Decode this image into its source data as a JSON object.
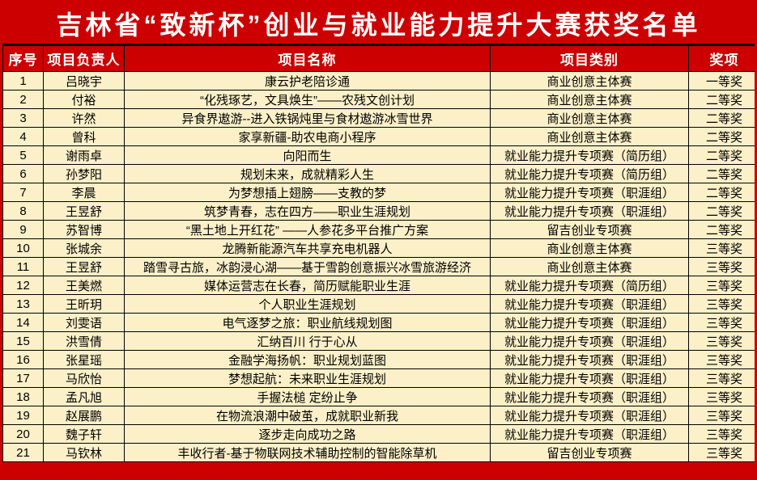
{
  "title": "吉林省“致新杯”创业与就业能力提升大赛获奖名单",
  "colors": {
    "banner_red": "#CC0000",
    "row_cream": "#FBF0C8",
    "grid_line": "#000000",
    "banner_text": "#FFFFFF",
    "body_text": "#000000"
  },
  "table": {
    "columns": [
      "序号",
      "项目负责人",
      "项目名称",
      "项目类别",
      "奖项"
    ],
    "rows": [
      {
        "no": "1",
        "leader": "吕晓宇",
        "project": "康云护老陪诊通",
        "category": "商业创意主体赛",
        "award": "一等奖"
      },
      {
        "no": "2",
        "leader": "付裕",
        "project": "“化残琢艺，文具焕生”——农残文创计划",
        "category": "商业创意主体赛",
        "award": "二等奖"
      },
      {
        "no": "3",
        "leader": "许然",
        "project": "异食界遨游--进入铁锅炖里与食材遨游冰雪世界",
        "category": "商业创意主体赛",
        "award": "二等奖"
      },
      {
        "no": "4",
        "leader": "曾科",
        "project": "家享新疆-助农电商小程序",
        "category": "商业创意主体赛",
        "award": "二等奖"
      },
      {
        "no": "5",
        "leader": "谢雨卓",
        "project": "向阳而生",
        "category": "就业能力提升专项赛（简历组）",
        "award": "二等奖"
      },
      {
        "no": "6",
        "leader": "孙梦阳",
        "project": "规划未来，成就精彩人生",
        "category": "就业能力提升专项赛（简历组）",
        "award": "二等奖"
      },
      {
        "no": "7",
        "leader": "李晨",
        "project": "为梦想插上翅膀——支教的梦",
        "category": "就业能力提升专项赛（职涯组）",
        "award": "二等奖"
      },
      {
        "no": "8",
        "leader": "王昱舒",
        "project": "筑梦青春，志在四方——职业生涯规划",
        "category": "就业能力提升专项赛（职涯组）",
        "award": "二等奖"
      },
      {
        "no": "9",
        "leader": "苏智博",
        "project": "“黑土地上开红花” ——人参花多平台推广方案",
        "category": "留吉创业专项赛",
        "award": "二等奖"
      },
      {
        "no": "10",
        "leader": "张城余",
        "project": "龙腾新能源汽车共享充电机器人",
        "category": "商业创意主体赛",
        "award": "三等奖"
      },
      {
        "no": "11",
        "leader": "王昱舒",
        "project": "踏雪寻古旅，冰韵浸心湖——基于雪韵创意振兴冰雪旅游经济",
        "category": "商业创意主体赛",
        "award": "三等奖"
      },
      {
        "no": "12",
        "leader": "王美燃",
        "project": "媒体运营志在长春，简历赋能职业生涯",
        "category": "就业能力提升专项赛（简历组）",
        "award": "三等奖"
      },
      {
        "no": "13",
        "leader": "王昕玥",
        "project": "个人职业生涯规划",
        "category": "就业能力提升专项赛（职涯组）",
        "award": "三等奖"
      },
      {
        "no": "14",
        "leader": "刘雯语",
        "project": "电气逐梦之旅：职业航线规划图",
        "category": "就业能力提升专项赛（职涯组）",
        "award": "三等奖"
      },
      {
        "no": "15",
        "leader": "洪雪倩",
        "project": "汇纳百川 行于心从",
        "category": "就业能力提升专项赛（职涯组）",
        "award": "三等奖"
      },
      {
        "no": "16",
        "leader": "张星瑶",
        "project": "金融学海扬帆：职业规划蓝图",
        "category": "就业能力提升专项赛（职涯组）",
        "award": "三等奖"
      },
      {
        "no": "17",
        "leader": "马欣怡",
        "project": "梦想起航：未来职业生涯规划",
        "category": "就业能力提升专项赛（职涯组）",
        "award": "三等奖"
      },
      {
        "no": "18",
        "leader": "孟凡旭",
        "project": "手握法槌 定纷止争",
        "category": "就业能力提升专项赛（职涯组）",
        "award": "三等奖"
      },
      {
        "no": "19",
        "leader": "赵展鹏",
        "project": "在物流浪潮中破茧，成就职业新我",
        "category": "就业能力提升专项赛（职涯组）",
        "award": "三等奖"
      },
      {
        "no": "20",
        "leader": "魏子轩",
        "project": "逐步走向成功之路",
        "category": "就业能力提升专项赛（职涯组）",
        "award": "三等奖"
      },
      {
        "no": "21",
        "leader": "马钦林",
        "project": "丰收行者-基于物联网技术辅助控制的智能除草机",
        "category": "留吉创业专项赛",
        "award": "三等奖"
      }
    ]
  }
}
